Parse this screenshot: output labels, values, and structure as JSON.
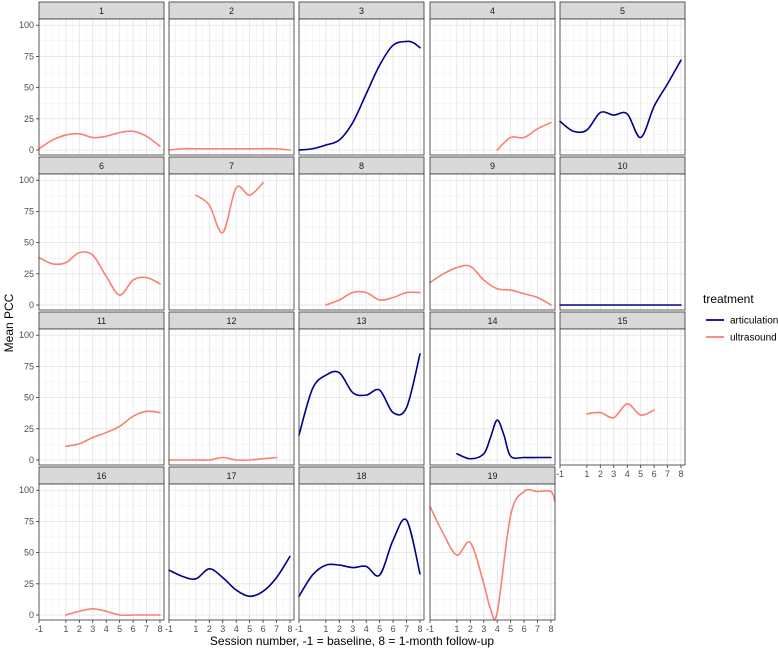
{
  "chart_data": {
    "type": "line",
    "xlabel": "Session number, -1 = baseline, 8 = 1-month follow-up",
    "ylabel": "Mean PCC",
    "xlim": [
      -1,
      8.3
    ],
    "ylim": [
      -4,
      105
    ],
    "x_ticks": [
      -1,
      1,
      2,
      3,
      4,
      5,
      6,
      7,
      8
    ],
    "y_ticks": [
      0,
      25,
      50,
      75,
      100
    ],
    "grid": true,
    "legend": {
      "title": "treatment",
      "position": "right",
      "entries": [
        {
          "label": "articulation",
          "color": "#00008b"
        },
        {
          "label": "ultrasound",
          "color": "#fa8072"
        }
      ]
    },
    "facets": [
      {
        "label": "1",
        "series": [
          {
            "treatment": "ultrasound",
            "x": [
              -1,
              0,
              1,
              2,
              3,
              4,
              5,
              6,
              7,
              8
            ],
            "y": [
              1,
              8,
              12,
              13,
              10,
              11,
              14,
              15,
              11,
              3
            ]
          }
        ]
      },
      {
        "label": "2",
        "series": [
          {
            "treatment": "ultrasound",
            "x": [
              -1,
              0,
              1,
              2,
              3,
              4,
              5,
              6,
              7,
              8
            ],
            "y": [
              0,
              1,
              1,
              1,
              1,
              1,
              1,
              1,
              1,
              0
            ]
          }
        ]
      },
      {
        "label": "3",
        "series": [
          {
            "treatment": "articulation",
            "x": [
              -1,
              0,
              1,
              2,
              3,
              4,
              5,
              6,
              7,
              7.5,
              8
            ],
            "y": [
              0,
              1,
              4,
              8,
              22,
              45,
              68,
              84,
              87,
              86,
              82
            ]
          }
        ]
      },
      {
        "label": "4",
        "series": [
          {
            "treatment": "ultrasound",
            "x": [
              4,
              5,
              6,
              7,
              8
            ],
            "y": [
              0,
              10,
              10,
              17,
              22
            ]
          }
        ]
      },
      {
        "label": "5",
        "series": [
          {
            "treatment": "articulation",
            "x": [
              -1,
              0,
              1,
              2,
              3,
              4,
              5,
              6,
              7,
              8
            ],
            "y": [
              23,
              15,
              16,
              30,
              28,
              29,
              10,
              35,
              53,
              72
            ]
          }
        ]
      },
      {
        "label": "6",
        "series": [
          {
            "treatment": "ultrasound",
            "x": [
              -1,
              0,
              1,
              2,
              3,
              4,
              5,
              6,
              7,
              8
            ],
            "y": [
              38,
              33,
              34,
              42,
              40,
              23,
              8,
              20,
              22,
              17
            ]
          }
        ]
      },
      {
        "label": "7",
        "series": [
          {
            "treatment": "ultrasound",
            "x": [
              1,
              2,
              3,
              4,
              5,
              6
            ],
            "y": [
              88,
              80,
              58,
              94,
              88,
              98
            ]
          }
        ]
      },
      {
        "label": "8",
        "series": [
          {
            "treatment": "ultrasound",
            "x": [
              1,
              2,
              3,
              4,
              5,
              6,
              7,
              8
            ],
            "y": [
              0,
              4,
              10,
              10,
              4,
              6,
              10,
              10
            ]
          }
        ]
      },
      {
        "label": "9",
        "series": [
          {
            "treatment": "ultrasound",
            "x": [
              -1,
              0,
              1,
              2,
              3,
              4,
              5,
              6,
              7,
              8
            ],
            "y": [
              18,
              25,
              30,
              31,
              20,
              13,
              12,
              9,
              6,
              0
            ]
          }
        ]
      },
      {
        "label": "10",
        "series": [
          {
            "treatment": "articulation",
            "x": [
              -1,
              0,
              1,
              2,
              3,
              4,
              5,
              6,
              7,
              8
            ],
            "y": [
              0,
              0,
              0,
              0,
              0,
              0,
              0,
              0,
              0,
              0
            ]
          }
        ]
      },
      {
        "label": "11",
        "series": [
          {
            "treatment": "ultrasound",
            "x": [
              1,
              2,
              3,
              4,
              5,
              6,
              7,
              8
            ],
            "y": [
              11,
              13,
              18,
              22,
              27,
              35,
              39,
              38
            ]
          }
        ]
      },
      {
        "label": "12",
        "series": [
          {
            "treatment": "ultrasound",
            "x": [
              -1,
              0,
              1,
              2,
              3,
              4,
              5,
              6,
              7
            ],
            "y": [
              0,
              0,
              0,
              0,
              2,
              0,
              0,
              1,
              2
            ]
          }
        ]
      },
      {
        "label": "13",
        "series": [
          {
            "treatment": "articulation",
            "x": [
              -1,
              0,
              1,
              2,
              3,
              4,
              5,
              6,
              7,
              8
            ],
            "y": [
              20,
              57,
              68,
              70,
              54,
              52,
              56,
              38,
              42,
              85
            ]
          }
        ]
      },
      {
        "label": "14",
        "series": [
          {
            "treatment": "articulation",
            "x": [
              1,
              2,
              3,
              3.5,
              4,
              4.5,
              5,
              6,
              7,
              8
            ],
            "y": [
              5,
              1,
              5,
              18,
              32,
              20,
              3,
              2,
              2,
              2
            ]
          }
        ]
      },
      {
        "label": "15",
        "series": [
          {
            "treatment": "ultrasound",
            "x": [
              1,
              2,
              3,
              4,
              5,
              6
            ],
            "y": [
              37,
              38,
              34,
              45,
              36,
              40
            ]
          }
        ]
      },
      {
        "label": "16",
        "series": [
          {
            "treatment": "ultrasound",
            "x": [
              1,
              2,
              3,
              4,
              5,
              6,
              7,
              8
            ],
            "y": [
              0,
              3,
              5,
              3,
              0,
              0,
              0,
              0
            ]
          }
        ]
      },
      {
        "label": "17",
        "series": [
          {
            "treatment": "articulation",
            "x": [
              -1,
              0,
              1,
              2,
              3,
              4,
              5,
              6,
              7,
              8
            ],
            "y": [
              36,
              31,
              29,
              37,
              30,
              20,
              15,
              19,
              30,
              47
            ]
          }
        ]
      },
      {
        "label": "18",
        "series": [
          {
            "treatment": "articulation",
            "x": [
              -1,
              0,
              1,
              2,
              3,
              4,
              5,
              6,
              7,
              8
            ],
            "y": [
              15,
              32,
              40,
              40,
              38,
              39,
              32,
              60,
              76,
              33
            ]
          }
        ]
      },
      {
        "label": "19",
        "series": [
          {
            "treatment": "ultrasound",
            "x": [
              -1,
              0,
              1,
              2,
              3,
              3.5,
              4,
              5,
              6,
              7,
              8,
              8.3
            ],
            "y": [
              87,
              65,
              48,
              58,
              25,
              5,
              2,
              80,
              99,
              99,
              99,
              91
            ]
          }
        ]
      }
    ]
  }
}
